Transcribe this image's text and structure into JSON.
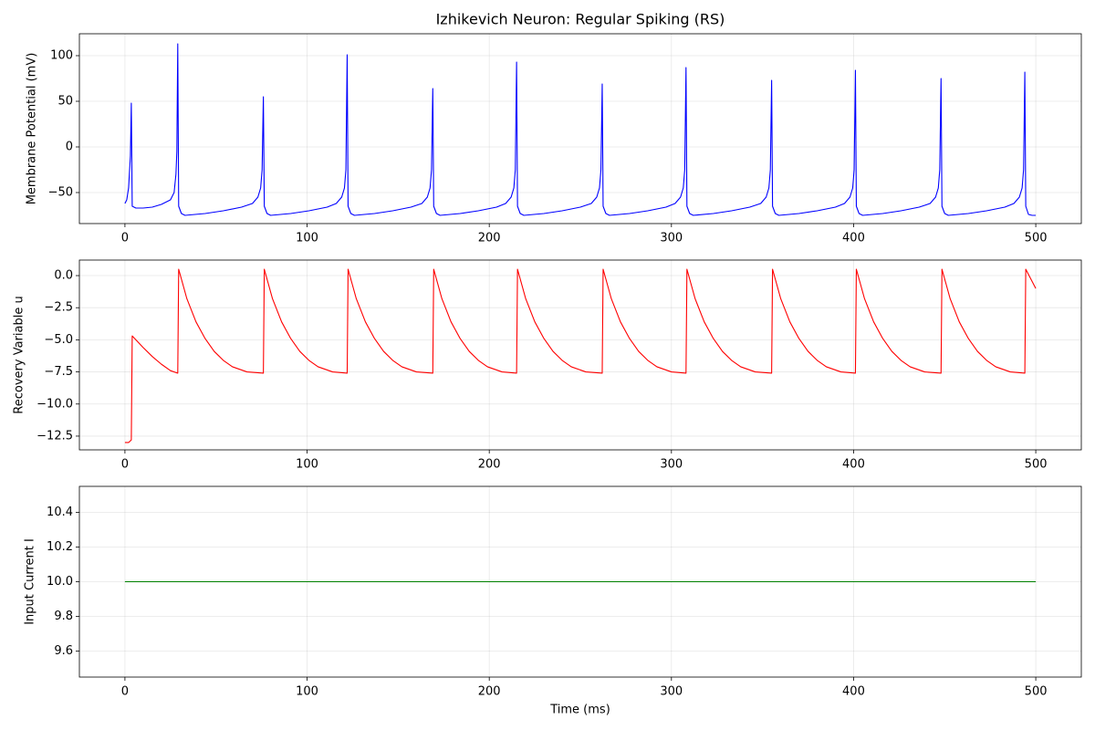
{
  "chart_data": [
    {
      "type": "line",
      "title": "Izhikevich Neuron: Regular Spiking (RS)",
      "ylabel": "Membrane Potential (mV)",
      "color": "#0000ff",
      "grid": true,
      "xlim": [
        -25,
        525
      ],
      "xticks": [
        0,
        100,
        200,
        300,
        400,
        500
      ],
      "ylim": [
        -84,
        124
      ],
      "yticks": [
        {
          "value": -50,
          "label": "−50"
        },
        0,
        50,
        100
      ],
      "x": [
        0,
        1,
        2,
        3,
        3.5,
        4,
        6,
        10,
        15,
        20,
        25,
        27,
        28,
        28.5,
        29,
        29.5,
        31,
        33,
        44,
        54,
        64,
        70,
        73,
        74.5,
        75.3,
        76,
        76.5,
        78,
        80,
        91,
        101,
        111,
        116,
        119,
        120.5,
        121.3,
        122,
        122.5,
        124,
        126,
        137,
        147,
        157,
        163,
        166,
        167.5,
        168.3,
        169,
        169.5,
        171,
        173,
        184,
        194,
        204,
        209,
        212,
        213.5,
        214.3,
        215,
        215.5,
        217,
        219,
        230,
        240,
        250,
        256,
        259,
        260.5,
        261.3,
        262,
        262.5,
        264,
        266,
        277,
        287,
        297,
        302,
        305,
        306.5,
        307.3,
        308,
        308.5,
        310,
        312,
        323,
        333,
        343,
        349,
        352,
        353.5,
        354.3,
        355,
        355.5,
        357,
        359,
        370,
        380,
        390,
        395,
        398,
        399.5,
        400.3,
        401,
        401.5,
        403,
        405,
        416,
        426,
        436,
        442,
        445,
        446.5,
        447.3,
        448,
        448.5,
        450,
        452,
        463,
        473,
        483,
        488,
        491,
        492.5,
        493.3,
        494,
        494.5,
        496,
        498,
        500
      ],
      "values": [
        -62,
        -58,
        -45,
        -10,
        48,
        -65,
        -67,
        -67,
        -66,
        -63,
        -58,
        -50,
        -30,
        -5,
        113,
        -65,
        -73,
        -75,
        -73,
        -70,
        -66,
        -62,
        -55,
        -45,
        -25,
        55,
        -65,
        -73,
        -75,
        -73,
        -70,
        -66,
        -62,
        -55,
        -45,
        -25,
        101,
        -65,
        -73,
        -75,
        -73,
        -70,
        -66,
        -62,
        -55,
        -45,
        -25,
        64,
        -65,
        -73,
        -75,
        -73,
        -70,
        -66,
        -62,
        -55,
        -45,
        -25,
        93,
        -65,
        -73,
        -75,
        -73,
        -70,
        -66,
        -62,
        -55,
        -45,
        -25,
        69,
        -65,
        -73,
        -75,
        -73,
        -70,
        -66,
        -62,
        -55,
        -45,
        -25,
        87,
        -65,
        -73,
        -75,
        -73,
        -70,
        -66,
        -62,
        -55,
        -45,
        -25,
        73,
        -65,
        -73,
        -75,
        -73,
        -70,
        -66,
        -62,
        -55,
        -45,
        -25,
        84,
        -65,
        -73,
        -75,
        -73,
        -70,
        -66,
        -62,
        -55,
        -45,
        -25,
        75,
        -65,
        -73,
        -75,
        -73,
        -70,
        -66,
        -62,
        -55,
        -45,
        -25,
        82,
        -65,
        -74,
        -75,
        -75
      ]
    },
    {
      "type": "line",
      "ylabel": "Recovery Variable u",
      "color": "#ff0000",
      "grid": true,
      "xlim": [
        -25,
        525
      ],
      "xticks": [
        0,
        100,
        200,
        300,
        400,
        500
      ],
      "ylim": [
        -13.57,
        1.21
      ],
      "yticks": [
        {
          "value": -12.5,
          "label": "−12.5"
        },
        {
          "value": -10,
          "label": "−10.0"
        },
        {
          "value": -7.5,
          "label": "−7.5"
        },
        {
          "value": -5,
          "label": "−5.0"
        },
        {
          "value": -2.5,
          "label": "−2.5"
        },
        {
          "value": 0,
          "label": "0.0"
        }
      ],
      "x": [
        0,
        2,
        3.5,
        4,
        10,
        15,
        20,
        25,
        29,
        29.5,
        34,
        39,
        44,
        49,
        54,
        59,
        67,
        76,
        76.5,
        81,
        86,
        91,
        96,
        101,
        106,
        114,
        122,
        122.5,
        127,
        132,
        137,
        142,
        147,
        152,
        160,
        169,
        169.5,
        174,
        179,
        184,
        189,
        194,
        199,
        207,
        215,
        215.5,
        220,
        225,
        230,
        235,
        240,
        245,
        253,
        262,
        262.5,
        267,
        272,
        277,
        282,
        287,
        292,
        300,
        308,
        308.5,
        313,
        318,
        323,
        328,
        333,
        338,
        346,
        355,
        355.5,
        360,
        365,
        370,
        375,
        380,
        385,
        393,
        401,
        401.5,
        406,
        411,
        416,
        421,
        426,
        431,
        439,
        448,
        448.5,
        453,
        458,
        463,
        468,
        473,
        478,
        486,
        494,
        494.5,
        500
      ],
      "values": [
        -13,
        -13,
        -12.8,
        -4.7,
        -5.6,
        -6.3,
        -6.9,
        -7.4,
        -7.6,
        0.5,
        -1.8,
        -3.6,
        -4.9,
        -5.9,
        -6.6,
        -7.1,
        -7.5,
        -7.6,
        0.5,
        -1.8,
        -3.6,
        -4.9,
        -5.9,
        -6.6,
        -7.1,
        -7.5,
        -7.6,
        0.5,
        -1.8,
        -3.6,
        -4.9,
        -5.9,
        -6.6,
        -7.1,
        -7.5,
        -7.6,
        0.5,
        -1.8,
        -3.6,
        -4.9,
        -5.9,
        -6.6,
        -7.1,
        -7.5,
        -7.6,
        0.5,
        -1.8,
        -3.6,
        -4.9,
        -5.9,
        -6.6,
        -7.1,
        -7.5,
        -7.6,
        0.5,
        -1.8,
        -3.6,
        -4.9,
        -5.9,
        -6.6,
        -7.1,
        -7.5,
        -7.6,
        0.5,
        -1.8,
        -3.6,
        -4.9,
        -5.9,
        -6.6,
        -7.1,
        -7.5,
        -7.6,
        0.5,
        -1.8,
        -3.6,
        -4.9,
        -5.9,
        -6.6,
        -7.1,
        -7.5,
        -7.6,
        0.5,
        -1.8,
        -3.6,
        -4.9,
        -5.9,
        -6.6,
        -7.1,
        -7.5,
        -7.6,
        0.5,
        -1.8,
        -3.6,
        -4.9,
        -5.9,
        -6.6,
        -7.1,
        -7.5,
        -7.6,
        0.5,
        -1.0
      ]
    },
    {
      "type": "line",
      "ylabel": "Input Current I",
      "xlabel": "Time (ms)",
      "color": "#008000",
      "grid": true,
      "xlim": [
        -25,
        525
      ],
      "xticks": [
        0,
        100,
        200,
        300,
        400,
        500
      ],
      "ylim": [
        9.45,
        10.55
      ],
      "yticks": [
        9.6,
        9.8,
        {
          "value": 10,
          "label": "10.0"
        },
        10.2,
        10.4
      ],
      "x": [
        0,
        500
      ],
      "values": [
        10,
        10
      ]
    }
  ]
}
